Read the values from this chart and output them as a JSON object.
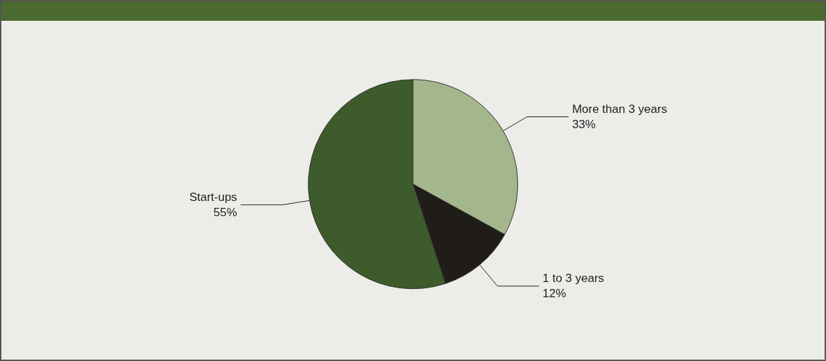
{
  "chart_data": {
    "type": "pie",
    "categories": [
      "More than 3 years",
      "1 to 3 years",
      "Start-ups"
    ],
    "values": [
      33,
      12,
      55
    ],
    "colors": [
      "#a4b68c",
      "#201c18",
      "#3e5b2b"
    ],
    "value_labels": [
      "33%",
      "12%",
      "55%"
    ]
  }
}
